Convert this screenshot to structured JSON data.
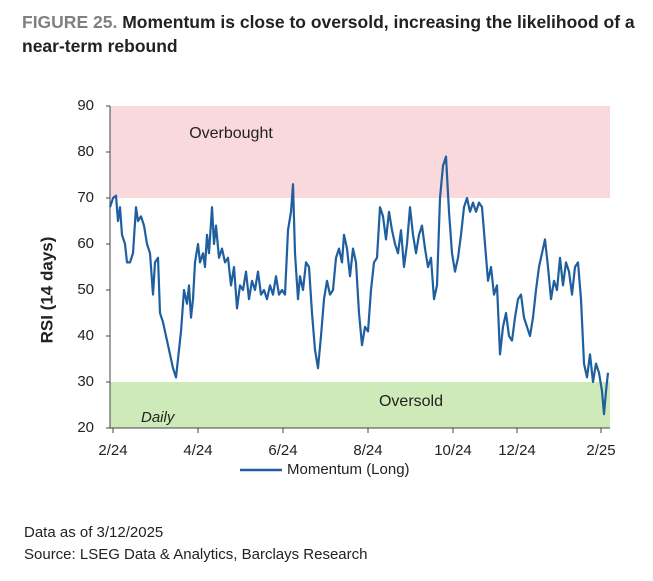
{
  "chart_data": {
    "type": "line",
    "figure_label": "FIGURE 25.",
    "title": "Momentum is close to oversold, increasing the likelihood of a near-term rebound",
    "y_label": "RSI  (14 days)",
    "annotation": "Daily",
    "footnotes": [
      "Data as of 3/12/2025",
      "Source: LSEG Data & Analytics, Barclays Research"
    ],
    "bands": [
      {
        "from": 70,
        "to": 90,
        "label": "Overbought",
        "color": "#f9d9dc",
        "label_color": "#c0282e"
      },
      {
        "from": 20,
        "to": 30,
        "label": "Oversold",
        "color": "#cfeab9",
        "label_color": "#2e9a3a"
      }
    ],
    "ylim": [
      20,
      90
    ],
    "yticks": [
      20,
      30,
      40,
      50,
      60,
      70,
      80,
      90
    ],
    "xlim": [
      0,
      500
    ],
    "xticks": [
      {
        "value": 3,
        "label": "2/24"
      },
      {
        "value": 88,
        "label": "4/24"
      },
      {
        "value": 173,
        "label": "6/24"
      },
      {
        "value": 258,
        "label": "8/24"
      },
      {
        "value": 343,
        "label": "10/24"
      },
      {
        "value": 407,
        "label": "12/24"
      },
      {
        "value": 491,
        "label": "2/25"
      }
    ],
    "legend": "bottom",
    "series": [
      {
        "name": "Momentum (Long)",
        "color": "#1f5f9f",
        "x": [
          0,
          3,
          6,
          8,
          10,
          12,
          15,
          17,
          20,
          23,
          26,
          28,
          31,
          34,
          37,
          40,
          43,
          45,
          48,
          50,
          53,
          56,
          60,
          63,
          66,
          68,
          71,
          74,
          77,
          79,
          81,
          83,
          85,
          88,
          90,
          93,
          95,
          97,
          99,
          102,
          104,
          106,
          109,
          112,
          115,
          118,
          121,
          124,
          127,
          130,
          133,
          136,
          139,
          142,
          145,
          148,
          151,
          154,
          157,
          160,
          163,
          166,
          169,
          172,
          175,
          178,
          181,
          183,
          185,
          188,
          190,
          193,
          196,
          199,
          202,
          205,
          208,
          211,
          214,
          217,
          220,
          223,
          226,
          229,
          232,
          234,
          237,
          240,
          243,
          246,
          249,
          252,
          255,
          258,
          261,
          264,
          267,
          270,
          273,
          276,
          279,
          282,
          285,
          288,
          291,
          294,
          297,
          300,
          303,
          306,
          309,
          312,
          315,
          318,
          321,
          324,
          327,
          330,
          333,
          336,
          339,
          342,
          345,
          348,
          351,
          354,
          357,
          360,
          363,
          366,
          369,
          372,
          375,
          378,
          381,
          384,
          387,
          390,
          393,
          396,
          399,
          402,
          405,
          408,
          411,
          414,
          417,
          420,
          423,
          426,
          429,
          432,
          435,
          438,
          441,
          444,
          447,
          450,
          453,
          456,
          459,
          462,
          465,
          468,
          471,
          474,
          477,
          480,
          483,
          486,
          489,
          492,
          494,
          496,
          498
        ],
        "values": [
          68,
          70,
          70.5,
          65,
          68,
          62,
          60,
          56,
          56,
          58,
          68,
          65,
          66,
          64,
          60,
          58,
          49,
          56,
          57,
          45,
          43,
          40,
          36,
          33,
          31,
          35,
          41,
          50,
          47,
          51,
          44,
          48,
          56,
          60,
          56,
          58,
          55,
          62,
          58,
          68,
          60,
          64,
          57,
          59,
          56,
          57,
          51,
          55,
          46,
          51,
          50,
          54,
          48,
          52,
          50,
          54,
          49,
          50,
          48,
          51,
          49,
          53,
          49,
          50,
          49,
          63,
          67,
          73,
          58,
          48,
          53,
          50,
          56,
          55,
          45,
          37,
          33,
          40,
          48,
          52,
          49,
          50,
          57,
          59,
          56,
          62,
          59,
          53,
          59,
          56,
          45,
          38,
          42,
          41,
          50,
          56,
          57,
          68,
          66,
          61,
          67,
          63,
          60,
          58,
          63,
          55,
          60,
          68,
          62,
          58,
          62,
          64,
          59,
          55,
          57,
          48,
          51,
          70,
          77,
          79,
          67,
          58,
          54,
          57,
          62,
          68,
          70,
          67,
          69,
          67,
          69,
          68,
          60,
          52,
          55,
          49,
          51,
          36,
          42,
          45,
          40,
          39,
          44,
          48,
          49,
          44,
          42,
          40,
          44,
          50,
          55,
          58,
          61,
          55,
          48,
          52,
          50,
          57,
          51,
          56,
          54,
          49,
          55,
          56,
          48,
          34,
          31,
          36,
          30,
          34,
          32,
          28,
          23,
          28,
          32
        ]
      }
    ]
  }
}
